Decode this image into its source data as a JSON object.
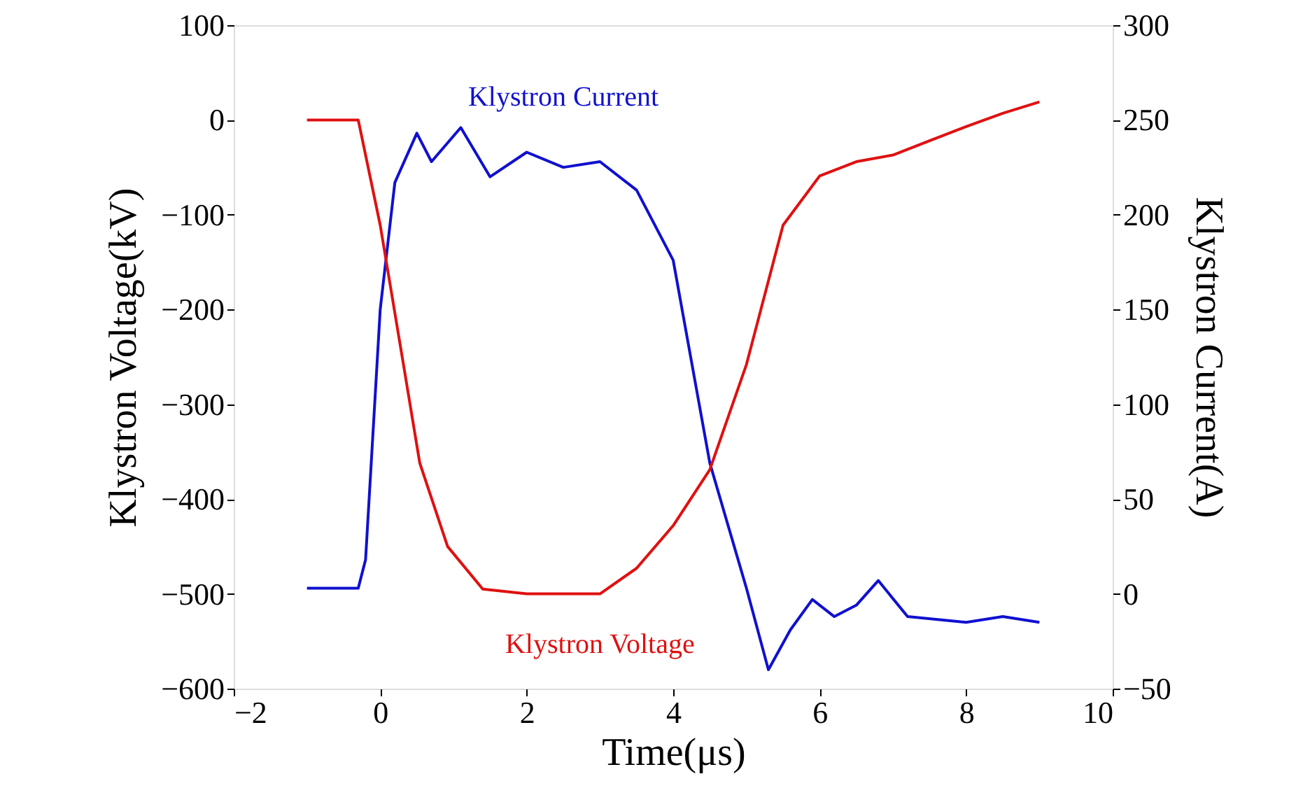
{
  "chart_data": {
    "type": "line",
    "xlabel": "Time(μs)",
    "ylabel": "Klystron Voltage(kV)",
    "y2label": "Klystron Current(A)",
    "xlim": [
      -2,
      10
    ],
    "xticks": [
      -2,
      0,
      2,
      4,
      6,
      8,
      10
    ],
    "ylim": [
      -600,
      100
    ],
    "yticks": [
      -600,
      -500,
      -400,
      -300,
      -200,
      -100,
      0,
      100
    ],
    "y2lim": [
      -50,
      300
    ],
    "y2ticks": [
      -50,
      0,
      50,
      100,
      150,
      200,
      250,
      300
    ],
    "grid": false,
    "marker": "none",
    "line_style": "solid",
    "series": [
      {
        "name": "Klystron Current",
        "color": "#1010d0",
        "axis": "y2",
        "x": [
          -1,
          -0.3,
          -0.2,
          0,
          0.2,
          0.5,
          0.7,
          1.1,
          1.5,
          2,
          2.5,
          3,
          3.5,
          4,
          4.5,
          5,
          5.3,
          5.6,
          5.9,
          6.2,
          6.5,
          6.8,
          7.2,
          8,
          8.5,
          9
        ],
        "values": [
          3,
          3,
          18,
          150,
          217,
          243,
          228,
          246,
          220,
          233,
          225,
          228,
          213,
          176,
          69,
          3,
          -40,
          -19,
          -3,
          -12,
          -6,
          7,
          -12,
          -15,
          -12,
          -15
        ]
      },
      {
        "name": "Klystron Voltage",
        "color": "#e01010",
        "x": [
          -1,
          -0.3,
          0,
          0.3,
          0.54,
          0.92,
          1.4,
          2,
          3,
          3.5,
          4,
          4.5,
          5,
          5.5,
          6,
          6.5,
          7,
          7.5,
          8,
          8.5,
          9
        ],
        "values": [
          0,
          0,
          -111,
          -250,
          -362,
          -450,
          -495,
          -500,
          -500,
          -473,
          -428,
          -369,
          -258,
          -111,
          -59,
          -44,
          -37,
          -22,
          -7,
          7,
          19
        ]
      }
    ]
  }
}
